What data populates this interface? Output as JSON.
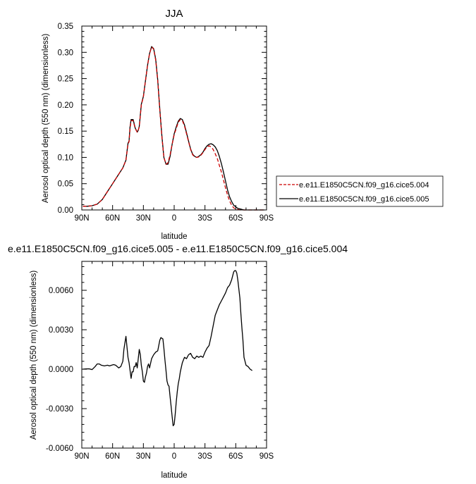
{
  "chart_data": [
    {
      "type": "line",
      "title": "JJA",
      "xlabel": "latitude",
      "ylabel": "Aerosol optical depth (550 nm) (dimensionless)",
      "xlim": [
        90,
        -90
      ],
      "ylim": [
        0,
        0.35
      ],
      "x_ticks": [
        90,
        60,
        30,
        0,
        -30,
        -60,
        -90
      ],
      "x_tick_labels": [
        "90N",
        "60N",
        "30N",
        "0",
        "30S",
        "60S",
        "90S"
      ],
      "y_ticks": [
        0,
        0.05,
        0.1,
        0.15,
        0.2,
        0.25,
        0.3,
        0.35
      ],
      "y_tick_labels": [
        "0.00",
        "0.05",
        "0.10",
        "0.15",
        "0.20",
        "0.25",
        "0.30",
        "0.35"
      ],
      "legend_position": "right",
      "series": [
        {
          "name": "e.e11.E1850C5CN.f09_g16.cice5.004",
          "color": "#cc0000",
          "dash": "dashed",
          "x": [
            89,
            85,
            80,
            75,
            70,
            65,
            60,
            55,
            50,
            47,
            45,
            44,
            43,
            42,
            40,
            38,
            36,
            35,
            34,
            32,
            30,
            28,
            26,
            24,
            22,
            20,
            18,
            16,
            14,
            12,
            10,
            8,
            6,
            4,
            2,
            0,
            -2,
            -4,
            -6,
            -8,
            -10,
            -12,
            -14,
            -16,
            -18,
            -20,
            -22,
            -24,
            -26,
            -28,
            -30,
            -32,
            -34,
            -36,
            -38,
            -40,
            -42,
            -44,
            -46,
            -48,
            -50,
            -52,
            -54,
            -56,
            -58,
            -60,
            -62,
            -64,
            -66,
            -68,
            -70,
            -72,
            -74,
            -76,
            -78,
            -80,
            -82,
            -84,
            -86,
            -88
          ],
          "y": [
            0.007,
            0.007,
            0.008,
            0.011,
            0.02,
            0.035,
            0.05,
            0.065,
            0.08,
            0.095,
            0.125,
            0.13,
            0.155,
            0.17,
            0.17,
            0.155,
            0.148,
            0.152,
            0.158,
            0.2,
            0.215,
            0.245,
            0.275,
            0.298,
            0.31,
            0.306,
            0.285,
            0.245,
            0.19,
            0.14,
            0.1,
            0.087,
            0.09,
            0.105,
            0.125,
            0.143,
            0.155,
            0.167,
            0.172,
            0.17,
            0.16,
            0.145,
            0.13,
            0.115,
            0.105,
            0.101,
            0.1,
            0.101,
            0.104,
            0.109,
            0.115,
            0.12,
            0.122,
            0.12,
            0.115,
            0.107,
            0.098,
            0.085,
            0.072,
            0.057,
            0.042,
            0.028,
            0.017,
            0.009,
            0.004,
            0.0015,
            0.001,
            0,
            0,
            0,
            0,
            0,
            0,
            0,
            0,
            0,
            0,
            0,
            0,
            0
          ]
        },
        {
          "name": "e.e11.E1850C5CN.f09_g16.cice5.005",
          "color": "#000000",
          "dash": "solid",
          "x": [
            89,
            85,
            80,
            75,
            70,
            65,
            60,
            55,
            50,
            47,
            45,
            44,
            43,
            42,
            40,
            38,
            36,
            35,
            34,
            32,
            30,
            28,
            26,
            24,
            22,
            20,
            18,
            16,
            14,
            12,
            10,
            8,
            6,
            4,
            2,
            0,
            -2,
            -4,
            -6,
            -8,
            -10,
            -12,
            -14,
            -16,
            -18,
            -20,
            -22,
            -24,
            -26,
            -28,
            -30,
            -32,
            -34,
            -36,
            -38,
            -40,
            -42,
            -44,
            -46,
            -48,
            -50,
            -52,
            -54,
            -56,
            -58,
            -60,
            -62,
            -64,
            -66,
            -68,
            -70,
            -72,
            -74,
            -76,
            -78,
            -80,
            -82,
            -84,
            -86,
            -88
          ],
          "y": [
            0.007,
            0.007,
            0.008,
            0.011,
            0.02,
            0.035,
            0.05,
            0.065,
            0.08,
            0.095,
            0.127,
            0.131,
            0.158,
            0.172,
            0.172,
            0.156,
            0.148,
            0.152,
            0.159,
            0.201,
            0.216,
            0.245,
            0.275,
            0.298,
            0.311,
            0.307,
            0.287,
            0.247,
            0.192,
            0.142,
            0.1,
            0.087,
            0.087,
            0.102,
            0.125,
            0.145,
            0.158,
            0.169,
            0.174,
            0.172,
            0.162,
            0.147,
            0.131,
            0.116,
            0.106,
            0.102,
            0.1,
            0.102,
            0.105,
            0.11,
            0.117,
            0.122,
            0.125,
            0.126,
            0.124,
            0.12,
            0.113,
            0.102,
            0.088,
            0.072,
            0.055,
            0.038,
            0.025,
            0.016,
            0.009,
            0.006,
            0.003,
            0.002,
            0.001,
            0,
            0,
            0,
            0,
            0,
            0,
            0,
            0,
            0,
            0,
            0
          ]
        }
      ]
    },
    {
      "type": "line",
      "title": "e.e11.E1850C5CN.f09_g16.cice5.005 - e.e11.E1850C5CN.f09_g16.cice5.004",
      "xlabel": "latitude",
      "ylabel": "Aerosol optical depth (550 nm) (dimensionless)",
      "xlim": [
        90,
        -90
      ],
      "ylim": [
        -0.006,
        0.0082
      ],
      "x_ticks": [
        90,
        60,
        30,
        0,
        -30,
        -60,
        -90
      ],
      "x_tick_labels": [
        "90N",
        "60N",
        "30N",
        "0",
        "30S",
        "60S",
        "90S"
      ],
      "y_ticks": [
        -0.006,
        -0.003,
        0,
        0.003,
        0.006
      ],
      "y_tick_labels": [
        "-0.0060",
        "-0.0030",
        "0.0000",
        "0.0030",
        "0.0060"
      ],
      "series": [
        {
          "color": "#000000",
          "dash": "solid",
          "x": [
            89,
            86,
            83,
            80,
            77,
            75,
            73,
            71,
            68,
            65,
            63,
            61,
            59,
            57,
            54,
            52,
            50,
            49,
            47,
            45,
            44,
            42,
            41,
            40,
            39,
            38,
            37,
            36,
            34,
            33,
            32,
            31,
            30,
            29,
            28,
            27,
            26,
            25,
            24,
            22,
            20,
            18,
            16,
            14,
            13,
            11,
            10,
            9,
            8,
            7,
            6,
            5,
            4,
            3,
            2,
            1,
            0,
            -1,
            -2,
            -3,
            -4,
            -5,
            -6,
            -8,
            -10,
            -12,
            -14,
            -16,
            -18,
            -20,
            -22,
            -24,
            -26,
            -28,
            -30,
            -32,
            -34,
            -36,
            -38,
            -40,
            -42,
            -44,
            -46,
            -48,
            -50,
            -52,
            -54,
            -56,
            -58,
            -59,
            -60,
            -61,
            -62,
            -63,
            -64,
            -65,
            -66,
            -67,
            -68,
            -70,
            -72,
            -74,
            -76
          ],
          "y": [
            0,
            2e-05,
            3e-05,
            -3e-05,
            0.0002,
            0.0004,
            0.0004,
            0.0003,
            0.00025,
            0.0003,
            0.00025,
            0.0003,
            0.00035,
            0.0003,
            0.0001,
            0.0002,
            0.0006,
            0.0015,
            0.0025,
            0.0009,
            0.0005,
            -0.0007,
            -0.0002,
            -0.0002,
            0.0002,
            0.0002,
            0.0005,
            0.0001,
            0.0015,
            0.0011,
            0.0003,
            -0.0002,
            -0.0009,
            -0.001,
            -0.0006,
            -0.0003,
            0.0002,
            0.0004,
            0.0001,
            0.0008,
            0.0011,
            0.0013,
            0.0014,
            0.0022,
            0.0024,
            0.0023,
            0.0016,
            0.0007,
            -0.0001,
            -0.0009,
            -0.0012,
            -0.0013,
            -0.0021,
            -0.0028,
            -0.0036,
            -0.0043,
            -0.0042,
            -0.0034,
            -0.0025,
            -0.0017,
            -0.0011,
            -0.0007,
            -0.0002,
            0.0005,
            0.0009,
            0.0008,
            0.0011,
            0.0012,
            0.0009,
            0.0008,
            0.001,
            0.0009,
            0.001,
            0.0009,
            0.0013,
            0.0016,
            0.0018,
            0.0025,
            0.0033,
            0.0041,
            0.0045,
            0.0049,
            0.0052,
            0.0055,
            0.0058,
            0.0062,
            0.0064,
            0.0068,
            0.0074,
            0.0075,
            0.0075,
            0.0073,
            0.0068,
            0.0061,
            0.0054,
            0.0042,
            0.0031,
            0.0022,
            0.0009,
            0.0003,
            0.0002,
            0,
            -0.0001
          ]
        }
      ]
    }
  ]
}
